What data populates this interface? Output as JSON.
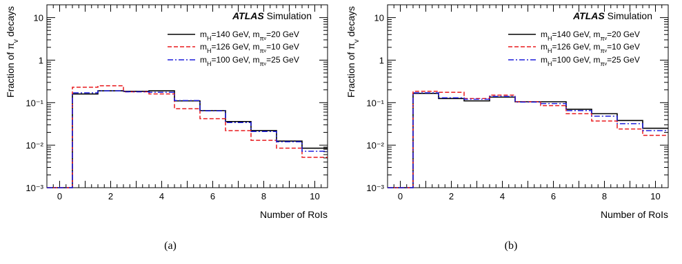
{
  "chart_data": [
    {
      "type": "histogram",
      "panel_label": "(a)",
      "xlabel": "Number of RoIs",
      "ylabel": "Fraction of π_v decays",
      "xlim": [
        -0.5,
        10.5
      ],
      "ylim": [
        0.001,
        20
      ],
      "yscale": "log",
      "x_ticks": [
        0,
        2,
        4,
        6,
        8,
        10
      ],
      "y_ticks": [
        {
          "value": 0.001,
          "label": "10⁻³"
        },
        {
          "value": 0.01,
          "label": "10⁻²"
        },
        {
          "value": 0.1,
          "label": "10⁻¹"
        },
        {
          "value": 1,
          "label": "1"
        },
        {
          "value": 10,
          "label": "10"
        }
      ],
      "bins": [
        0,
        1,
        2,
        3,
        4,
        5,
        6,
        7,
        8,
        9,
        10
      ],
      "atlas_label": "ATLAS",
      "atlas_sub": "Simulation",
      "series": [
        {
          "name": "m_H=140 GeV, m_πv=20 GeV",
          "color": "#000000",
          "dash": "solid",
          "values": [
            0.001,
            0.16,
            0.19,
            0.185,
            0.19,
            0.11,
            0.065,
            0.036,
            0.022,
            0.0125,
            0.0085
          ]
        },
        {
          "name": "m_H=126 GeV, m_πv=10 GeV",
          "color": "#e8191c",
          "dash": "dashed",
          "values": [
            0.001,
            0.23,
            0.25,
            0.18,
            0.16,
            0.072,
            0.042,
            0.022,
            0.013,
            0.0085,
            0.0052
          ]
        },
        {
          "name": "m_H=100 GeV, m_πv=25 GeV",
          "color": "#1c1cdc",
          "dash": "dashdot",
          "values": [
            0.001,
            0.17,
            0.19,
            0.18,
            0.175,
            0.112,
            0.064,
            0.034,
            0.021,
            0.012,
            0.0072
          ]
        }
      ]
    },
    {
      "type": "histogram",
      "panel_label": "(b)",
      "xlabel": "Number of RoIs",
      "ylabel": "Fraction of π_v decays",
      "xlim": [
        -0.5,
        10.5
      ],
      "ylim": [
        0.001,
        20
      ],
      "yscale": "log",
      "x_ticks": [
        0,
        2,
        4,
        6,
        8,
        10
      ],
      "y_ticks": [
        {
          "value": 0.001,
          "label": "10⁻³"
        },
        {
          "value": 0.01,
          "label": "10⁻²"
        },
        {
          "value": 0.1,
          "label": "10⁻¹"
        },
        {
          "value": 1,
          "label": "1"
        },
        {
          "value": 10,
          "label": "10"
        }
      ],
      "bins": [
        0,
        1,
        2,
        3,
        4,
        5,
        6,
        7,
        8,
        9,
        10
      ],
      "atlas_label": "ATLAS",
      "atlas_sub": "Simulation",
      "series": [
        {
          "name": "m_H=140 GeV, m_πv=20 GeV",
          "color": "#000000",
          "dash": "solid",
          "values": [
            0.001,
            0.165,
            0.125,
            0.11,
            0.135,
            0.105,
            0.105,
            0.07,
            0.055,
            0.038,
            0.025
          ]
        },
        {
          "name": "m_H=126 GeV, m_πv=10 GeV",
          "color": "#e8191c",
          "dash": "dashed",
          "values": [
            0.001,
            0.185,
            0.175,
            0.125,
            0.15,
            0.105,
            0.085,
            0.055,
            0.037,
            0.024,
            0.017
          ]
        },
        {
          "name": "m_H=100 GeV, m_πv=25 GeV",
          "color": "#1c1cdc",
          "dash": "dashdot",
          "values": [
            0.001,
            0.17,
            0.13,
            0.12,
            0.14,
            0.103,
            0.095,
            0.065,
            0.048,
            0.032,
            0.022
          ]
        }
      ]
    }
  ]
}
